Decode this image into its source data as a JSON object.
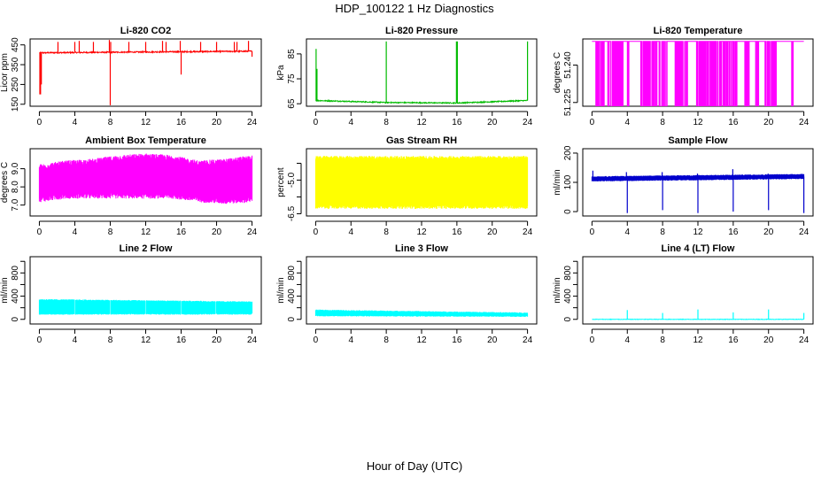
{
  "figure": {
    "title": "HDP_100122  1 Hz Diagnostics",
    "xlabel": "Hour of Day (UTC)"
  },
  "chart_data": [
    {
      "type": "line",
      "title": "Li-820 CO2",
      "xlabel": "",
      "ylabel": "Licor ppm",
      "color": "#ff0000",
      "xlim": [
        0,
        24
      ],
      "ylim": [
        140,
        480
      ],
      "x_ticks": [
        0,
        4,
        8,
        12,
        16,
        20,
        24
      ],
      "y_ticks": [
        150,
        250,
        350,
        450
      ],
      "y_tick_labels": [
        "150",
        "250",
        "350",
        "450"
      ],
      "baseline": [
        410,
        418
      ],
      "noise": 3,
      "low_band": [
        [
          0.05,
          0.15,
          200,
          410
        ],
        [
          0.2,
          0.25,
          250,
          410
        ]
      ],
      "spikes": [
        [
          2.1,
          465
        ],
        [
          4.0,
          465
        ],
        [
          4.5,
          470
        ],
        [
          6.1,
          465
        ],
        [
          7.9,
          475
        ],
        [
          8.0,
          145
        ],
        [
          8.05,
          465
        ],
        [
          10.1,
          465
        ],
        [
          12.0,
          465
        ],
        [
          13.9,
          470
        ],
        [
          14.3,
          465
        ],
        [
          15.9,
          470
        ],
        [
          16.0,
          300
        ],
        [
          18.2,
          465
        ],
        [
          20.0,
          465
        ],
        [
          22.0,
          465
        ],
        [
          22.3,
          465
        ],
        [
          23.6,
          470
        ],
        [
          24.0,
          390
        ]
      ]
    },
    {
      "type": "line",
      "title": "Li-820 Pressure",
      "xlabel": "",
      "ylabel": "kPa",
      "color": "#00bb00",
      "xlim": [
        0,
        24
      ],
      "ylim": [
        64,
        91
      ],
      "x_ticks": [
        0,
        4,
        8,
        12,
        16,
        20,
        24
      ],
      "y_ticks": [
        65,
        75,
        85
      ],
      "y_tick_labels": [
        "65",
        "75",
        "85"
      ],
      "baseline": [
        66.3,
        65.5,
        65.3,
        66.3
      ],
      "noise": 0.2,
      "spikes": [
        [
          0.05,
          87
        ],
        [
          0.15,
          79
        ],
        [
          8.0,
          90
        ],
        [
          15.95,
          90
        ],
        [
          16.05,
          90
        ],
        [
          24.0,
          90
        ]
      ]
    },
    {
      "type": "line",
      "title": "Li-820 Temperature",
      "xlabel": "",
      "ylabel": "degrees C",
      "color": "#ff00ff",
      "xlim": [
        0,
        24
      ],
      "ylim": [
        51.2235,
        51.2505
      ],
      "x_ticks": [
        0,
        4,
        8,
        12,
        16,
        20,
        24
      ],
      "y_ticks": [
        51.225,
        51.24
      ],
      "y_tick_labels": [
        "51.225",
        "51.240"
      ],
      "two_level": [
        51.2495,
        51.2235
      ],
      "drop_windows": [
        [
          0.3,
          3.5,
          0.35
        ],
        [
          4.0,
          4.2,
          0.5
        ],
        [
          5.5,
          7.4,
          0.5
        ],
        [
          7.6,
          8.5,
          0.7
        ],
        [
          9.4,
          10.8,
          0.6
        ],
        [
          11.8,
          16.4,
          0.5
        ],
        [
          17.3,
          17.8,
          0.6
        ],
        [
          18.5,
          18.9,
          0.5
        ],
        [
          19.6,
          20.9,
          0.6
        ],
        [
          22.6,
          22.8,
          0.4
        ]
      ]
    },
    {
      "type": "line",
      "title": "Ambient Box Temperature",
      "xlabel": "",
      "ylabel": "degrees C",
      "color": "#ff00ff",
      "xlim": [
        0,
        24
      ],
      "ylim": [
        6.4,
        10.1
      ],
      "x_ticks": [
        0,
        4,
        8,
        12,
        16,
        20,
        24
      ],
      "y_ticks": [
        7.0,
        8.0,
        9.0
      ],
      "y_tick_labels": [
        "7.0",
        "8.0",
        "9.0"
      ],
      "band_lower": [
        7.3,
        7.5,
        7.5,
        7.5,
        7.5,
        7.5,
        7.3,
        7.2,
        7.3
      ],
      "band_upper": [
        9.1,
        9.3,
        9.4,
        9.6,
        9.7,
        9.6,
        9.3,
        9.4,
        9.6
      ],
      "band_jitter": 0.15
    },
    {
      "type": "line",
      "title": "Gas Stream RH",
      "xlabel": "",
      "ylabel": "percent",
      "color": "#ffff00",
      "xlim": [
        0,
        24
      ],
      "ylim": [
        -6.6,
        -3.6
      ],
      "x_ticks": [
        0,
        4,
        8,
        12,
        16,
        20,
        24
      ],
      "y_ticks": [
        -6.5,
        -5.0
      ],
      "y_tick_labels": [
        "-6.5",
        "-5.0"
      ],
      "extra_ticks": [
        -5.75,
        -4.25
      ],
      "band_lower": [
        -6.2,
        -6.2
      ],
      "band_upper": [
        -4.0,
        -4.0
      ],
      "band_jitter": 0.08
    },
    {
      "type": "line",
      "title": "Sample Flow",
      "xlabel": "",
      "ylabel": "ml/min",
      "color": "#0000cc",
      "xlim": [
        0,
        24
      ],
      "ylim": [
        -15,
        215
      ],
      "x_ticks": [
        0,
        4,
        8,
        12,
        16,
        20,
        24
      ],
      "y_ticks": [
        0,
        100,
        200
      ],
      "y_tick_labels": [
        "0",
        "100",
        "200"
      ],
      "baseline": [
        112,
        120
      ],
      "noise": 3,
      "band": 12,
      "spikes": [
        [
          0.1,
          140
        ],
        [
          3.9,
          135
        ],
        [
          4.0,
          -5
        ],
        [
          7.95,
          135
        ],
        [
          8.0,
          5
        ],
        [
          11.95,
          130
        ],
        [
          12.0,
          -5
        ],
        [
          15.95,
          145
        ],
        [
          16.0,
          0
        ],
        [
          19.95,
          130
        ],
        [
          20.0,
          5
        ],
        [
          23.95,
          125
        ],
        [
          24.0,
          -5
        ]
      ]
    },
    {
      "type": "line",
      "title": "Line 2 Flow",
      "xlabel": "",
      "ylabel": "ml/min",
      "color": "#00ffff",
      "xlim": [
        0,
        24
      ],
      "ylim": [
        -80,
        1080
      ],
      "x_ticks": [
        0,
        4,
        8,
        12,
        16,
        20,
        24
      ],
      "y_ticks": [
        0,
        200,
        400,
        600,
        800,
        1000
      ],
      "y_tick_labels": [
        "0",
        "400",
        "800"
      ],
      "band_lower": [
        90,
        90
      ],
      "band_upper": [
        340,
        300
      ],
      "band_jitter": 10,
      "gaps": [
        4.0,
        8.0,
        12.0,
        16.0,
        19.9
      ]
    },
    {
      "type": "line",
      "title": "Line 3 Flow",
      "xlabel": "",
      "ylabel": "ml/min",
      "color": "#00ffff",
      "xlim": [
        0,
        24
      ],
      "ylim": [
        -80,
        1080
      ],
      "x_ticks": [
        0,
        4,
        8,
        12,
        16,
        20,
        24
      ],
      "y_ticks": [
        0,
        200,
        400,
        600,
        800,
        1000
      ],
      "y_tick_labels": [
        "0",
        "400",
        "800"
      ],
      "band_lower": [
        60,
        50
      ],
      "band_upper": [
        160,
        110
      ],
      "band_jitter": 8
    },
    {
      "type": "line",
      "title": "Line 4 (LT) Flow",
      "xlabel": "",
      "ylabel": "ml/min",
      "color": "#00ffff",
      "xlim": [
        0,
        24
      ],
      "ylim": [
        -80,
        1080
      ],
      "x_ticks": [
        0,
        4,
        8,
        12,
        16,
        20,
        24
      ],
      "y_ticks": [
        0,
        200,
        400,
        600,
        800,
        1000
      ],
      "y_tick_labels": [
        "0",
        "400",
        "800"
      ],
      "baseline": [
        0,
        0
      ],
      "noise": 4,
      "spikes": [
        [
          4.0,
          160
        ],
        [
          8.0,
          110
        ],
        [
          12.0,
          170
        ],
        [
          16.0,
          120
        ],
        [
          20.0,
          170
        ],
        [
          24.0,
          110
        ]
      ]
    }
  ]
}
